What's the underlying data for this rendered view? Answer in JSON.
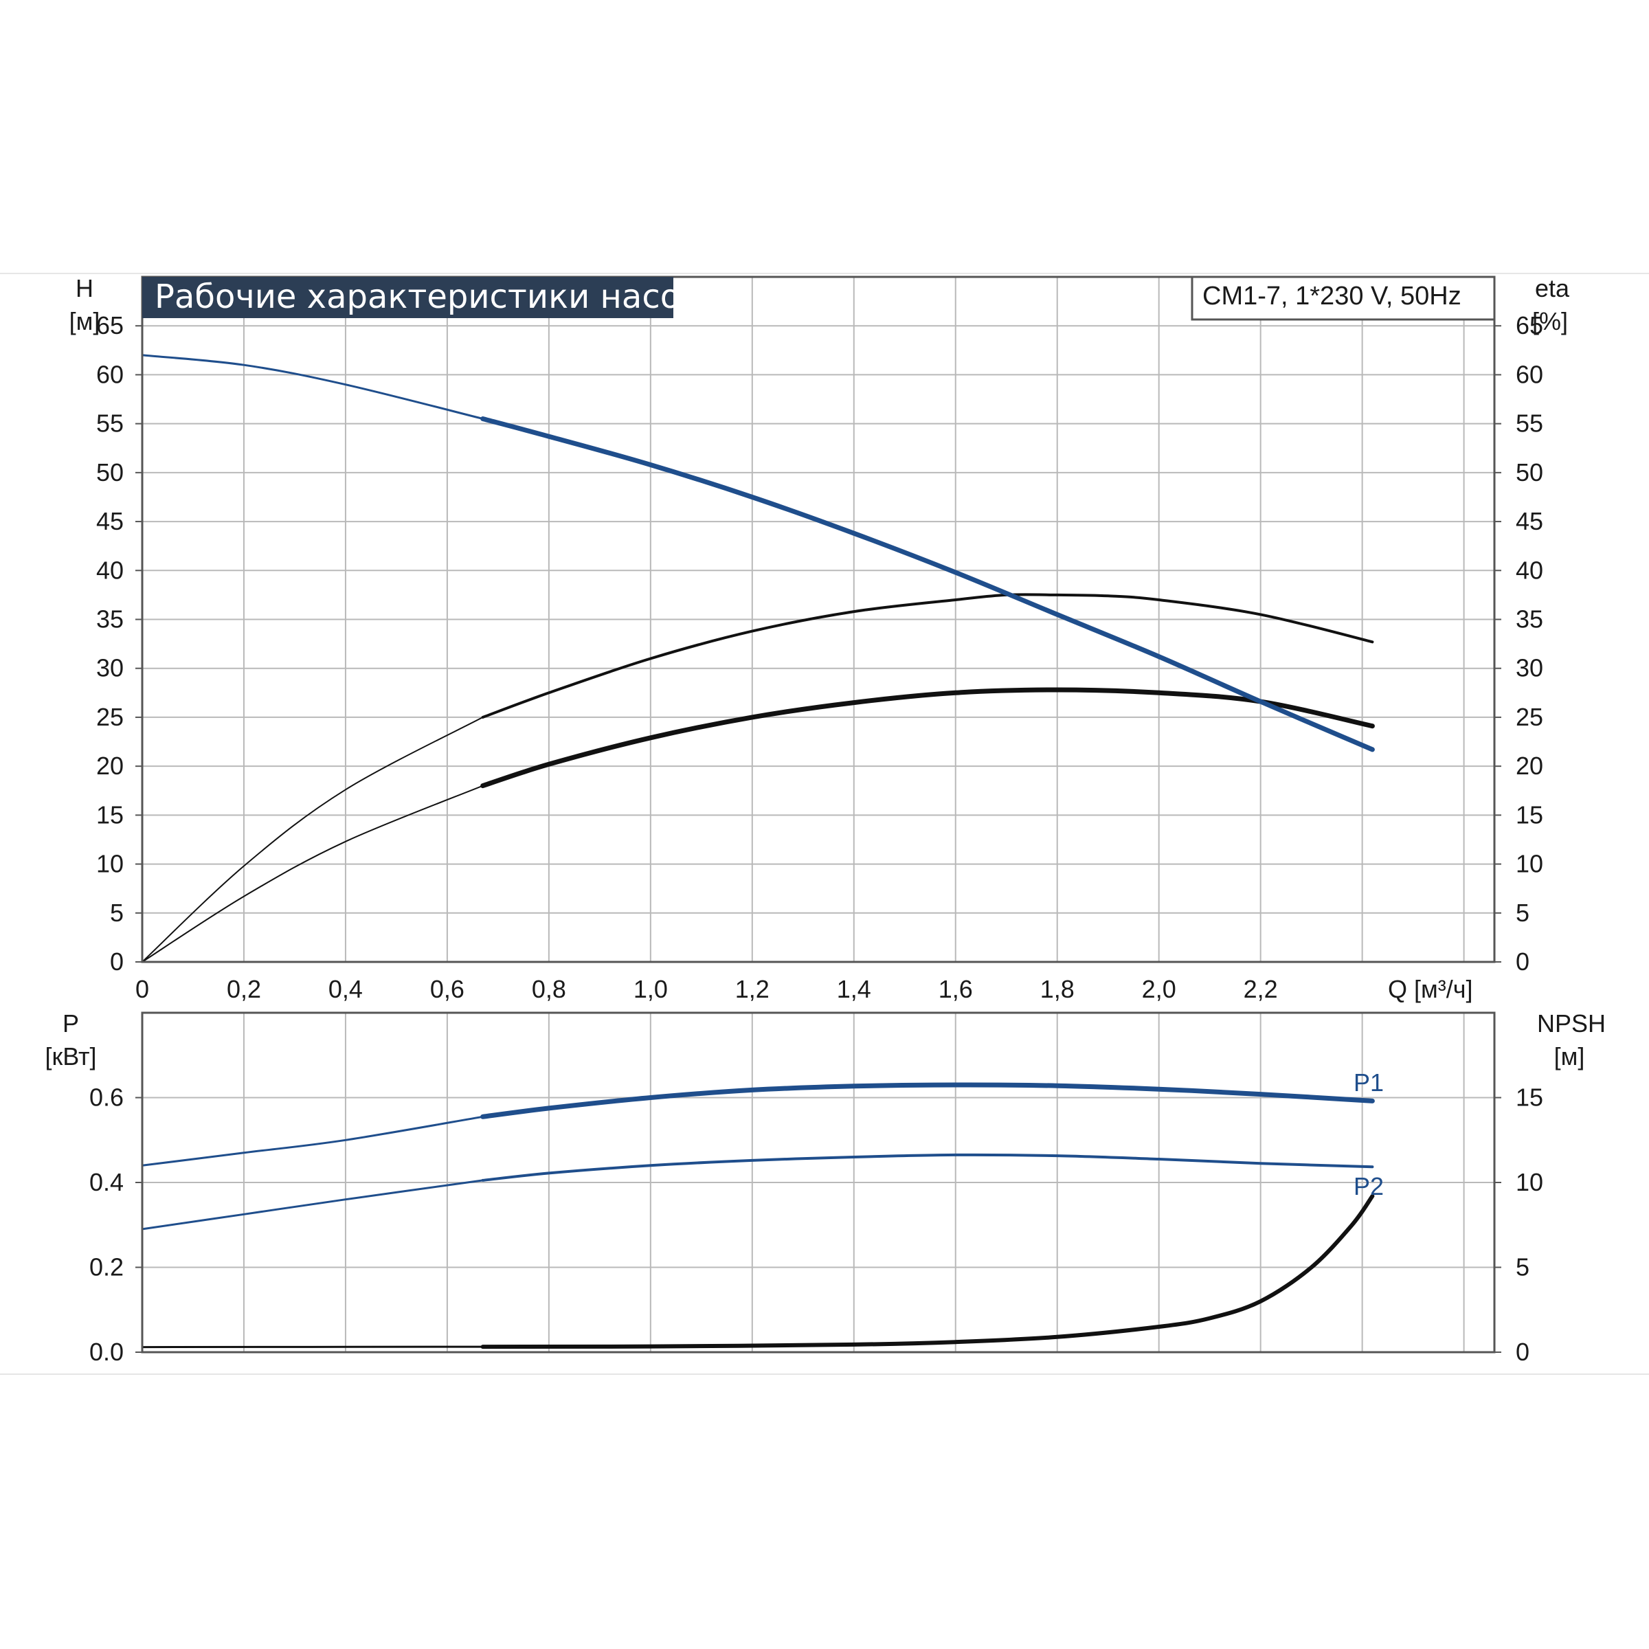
{
  "colors": {
    "blue": "#1f4e8c",
    "black": "#111111",
    "grid": "#b9b9b9",
    "title_bg": "#2c3e55"
  },
  "title": "Рабочие характеристики насоса",
  "model": "CM1-7, 1*230 V, 50Hz",
  "top_axes": {
    "left_label": "H",
    "left_unit": "[м]",
    "right_label": "eta",
    "right_unit": "[%]",
    "x_label": "Q [м³/ч]"
  },
  "bottom_axes": {
    "left_label": "P",
    "left_unit": "[кВт]",
    "right_label": "NPSH",
    "right_unit": "[м]"
  },
  "chart_data": [
    {
      "type": "line",
      "x_ticks": [
        "0",
        "0,2",
        "0,4",
        "0,6",
        "0,8",
        "1,0",
        "1,2",
        "1,4",
        "1,6",
        "1,8",
        "2,0",
        "2,2"
      ],
      "xlim": [
        0,
        2.66
      ],
      "y_ticks_left": [
        "0",
        "5",
        "10",
        "15",
        "20",
        "25",
        "30",
        "35",
        "40",
        "45",
        "50",
        "55",
        "60",
        "65"
      ],
      "y_ticks_right": [
        "0",
        "5",
        "10",
        "15",
        "20",
        "25",
        "30",
        "35",
        "40",
        "45",
        "50",
        "55",
        "60",
        "65"
      ],
      "ylim": [
        0,
        70
      ],
      "grid": true,
      "series": [
        {
          "name": "H",
          "color": "#1f4e8c",
          "x": [
            0,
            0.2,
            0.4,
            0.67,
            0.8,
            1.0,
            1.2,
            1.4,
            1.6,
            1.8,
            2.0,
            2.2,
            2.42
          ],
          "y": [
            62,
            61,
            59,
            55.5,
            53.7,
            50.8,
            47.5,
            43.8,
            39.8,
            35.5,
            31.2,
            26.6,
            21.7
          ]
        },
        {
          "name": "eta",
          "color": "#111111",
          "x": [
            0,
            0.2,
            0.4,
            0.67,
            0.8,
            1.0,
            1.2,
            1.4,
            1.6,
            1.7,
            1.8,
            1.9,
            2.0,
            2.2,
            2.42
          ],
          "y": [
            0,
            9.8,
            17.6,
            25,
            27.5,
            31,
            33.8,
            35.8,
            37,
            37.5,
            37.5,
            37.4,
            37,
            35.5,
            32.7
          ]
        },
        {
          "name": "eta",
          "color": "#111111",
          "x": [
            0,
            0.2,
            0.4,
            0.67,
            0.8,
            1.0,
            1.2,
            1.4,
            1.6,
            1.8,
            2.0,
            2.2,
            2.42
          ],
          "y": [
            0,
            6.7,
            12.3,
            18,
            20.2,
            22.9,
            25,
            26.5,
            27.5,
            27.8,
            27.5,
            26.6,
            24.1
          ]
        }
      ]
    },
    {
      "type": "line",
      "x_ticks": [],
      "xlim": [
        0,
        2.66
      ],
      "y_ticks_left": [
        "0.0",
        "0.2",
        "0.4",
        "0.6"
      ],
      "ylim_left": [
        0,
        0.8
      ],
      "y_ticks_right": [
        "0",
        "5",
        "10",
        "15"
      ],
      "ylim_right": [
        0,
        20
      ],
      "grid": true,
      "series": [
        {
          "name": "P1",
          "color": "#1f4e8c",
          "x": [
            0,
            0.2,
            0.4,
            0.67,
            0.8,
            1.0,
            1.2,
            1.4,
            1.6,
            1.8,
            2.0,
            2.2,
            2.42
          ],
          "y": [
            0.44,
            0.47,
            0.5,
            0.555,
            0.575,
            0.6,
            0.618,
            0.627,
            0.63,
            0.628,
            0.62,
            0.608,
            0.592
          ]
        },
        {
          "name": "P2",
          "color": "#1f4e8c",
          "x": [
            0,
            0.2,
            0.4,
            0.67,
            0.8,
            1.0,
            1.2,
            1.4,
            1.6,
            1.8,
            2.0,
            2.2,
            2.42
          ],
          "y": [
            0.29,
            0.325,
            0.36,
            0.405,
            0.422,
            0.44,
            0.452,
            0.46,
            0.465,
            0.463,
            0.455,
            0.445,
            0.437
          ]
        },
        {
          "name": "NPSH",
          "axis": "right",
          "color": "#111111",
          "x": [
            0,
            0.67,
            1.0,
            1.4,
            1.6,
            1.8,
            2.0,
            2.1,
            2.2,
            2.3,
            2.38,
            2.42
          ],
          "y": [
            0.3,
            0.32,
            0.34,
            0.45,
            0.6,
            0.9,
            1.5,
            2.0,
            3.0,
            5.0,
            7.5,
            9.2
          ]
        }
      ]
    }
  ]
}
